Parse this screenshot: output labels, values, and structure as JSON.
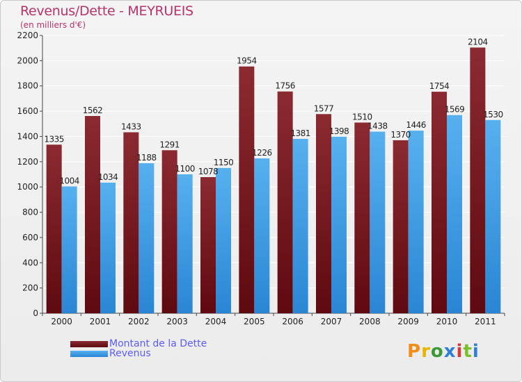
{
  "header": {
    "title": "Revenus/Dette - MEYRUEIS",
    "subtitle": "(en milliers d'€)"
  },
  "colors": {
    "dette": "#7a1f28",
    "revenus": "#3fa0e6",
    "title": "#b8336a",
    "legend_text": "#5b5bff"
  },
  "legend": [
    {
      "label": "Montant de la Dette",
      "color_key": "dette"
    },
    {
      "label": "Revenus",
      "color_key": "revenus"
    }
  ],
  "logo": {
    "text": "Proxiti"
  },
  "chart_data": {
    "type": "bar",
    "title": "Revenus/Dette - MEYRUEIS",
    "ylabel": "(en milliers d'€)",
    "xlabel": "",
    "ylim": [
      0,
      2200
    ],
    "yticks": [
      0,
      200,
      400,
      600,
      800,
      1000,
      1200,
      1400,
      1600,
      1800,
      2000,
      2200
    ],
    "grid": true,
    "categories": [
      "2000",
      "2001",
      "2002",
      "2003",
      "2004",
      "2005",
      "2006",
      "2007",
      "2008",
      "2009",
      "2010",
      "2011"
    ],
    "series": [
      {
        "name": "Montant de la Dette",
        "values": [
          1335,
          1562,
          1433,
          1291,
          1078,
          1954,
          1756,
          1577,
          1510,
          1370,
          1754,
          2104
        ]
      },
      {
        "name": "Revenus",
        "values": [
          1004,
          1034,
          1188,
          1100,
          1150,
          1226,
          1381,
          1398,
          1438,
          1446,
          1569,
          1530
        ]
      }
    ]
  }
}
